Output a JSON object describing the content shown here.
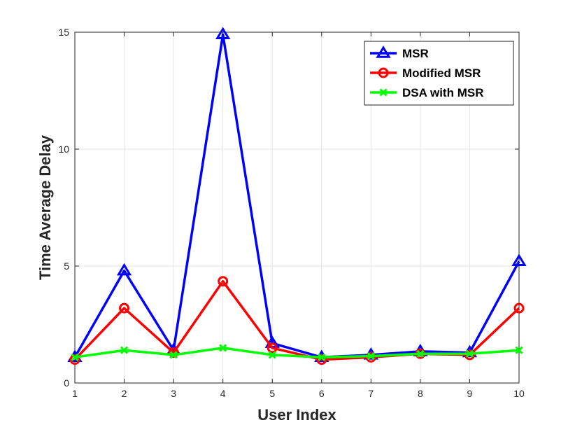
{
  "chart_data": {
    "type": "line",
    "title": "",
    "xlabel": "User Index",
    "ylabel": "Time Average Delay",
    "x": [
      1,
      2,
      3,
      4,
      5,
      6,
      7,
      8,
      9,
      10
    ],
    "xlim": [
      1,
      10
    ],
    "ylim": [
      0,
      15
    ],
    "xticks": [
      "1",
      "2",
      "3",
      "4",
      "5",
      "6",
      "7",
      "8",
      "9",
      "10"
    ],
    "yticks": [
      "0",
      "5",
      "10",
      "15"
    ],
    "grid": true,
    "legend_position": "top-right",
    "series": [
      {
        "name": "MSR",
        "color": "#0000ff",
        "marker": "triangle",
        "values": [
          1.1,
          4.8,
          1.4,
          14.9,
          1.7,
          1.1,
          1.2,
          1.35,
          1.3,
          5.2
        ]
      },
      {
        "name": "Modified MSR",
        "color": "#ff0000",
        "marker": "circle",
        "values": [
          1.0,
          3.2,
          1.3,
          4.35,
          1.5,
          1.0,
          1.1,
          1.25,
          1.2,
          3.2
        ]
      },
      {
        "name": "DSA with MSR",
        "color": "#00ff00",
        "marker": "x",
        "values": [
          1.1,
          1.4,
          1.2,
          1.5,
          1.2,
          1.1,
          1.15,
          1.25,
          1.25,
          1.4
        ]
      }
    ]
  }
}
